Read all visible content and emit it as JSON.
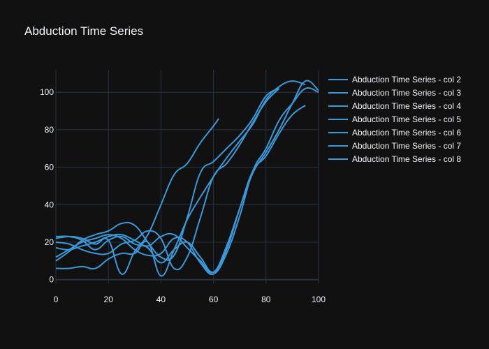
{
  "chart_data": {
    "type": "line",
    "title": "Abduction Time Series",
    "xlabel": "",
    "ylabel": "",
    "xlim": [
      0,
      100
    ],
    "ylim": [
      -2,
      112
    ],
    "x_ticks": [
      0,
      20,
      40,
      60,
      80,
      100
    ],
    "y_ticks": [
      0,
      20,
      40,
      60,
      80,
      100
    ],
    "grid": true,
    "legend_position": "right",
    "colors": {
      "background": "#111111",
      "grid": "#283442",
      "text": "#f2f5fa",
      "line": "#3a9ad9"
    },
    "series": [
      {
        "name": "Abduction Time Series - col 2",
        "x": [
          0,
          5,
          10,
          15,
          20,
          25,
          30,
          35,
          40,
          45,
          50,
          55,
          60,
          65,
          70,
          75,
          80,
          85
        ],
        "values": [
          10,
          15,
          21,
          24,
          26,
          30,
          29,
          20,
          12,
          13,
          33,
          57,
          63,
          70,
          77,
          86,
          98,
          102
        ]
      },
      {
        "name": "Abduction Time Series - col 3",
        "x": [
          0,
          5,
          10,
          15,
          20,
          25,
          30,
          35,
          40,
          45,
          50,
          55,
          60,
          65,
          70,
          75,
          80,
          85,
          90,
          95,
          100
        ],
        "values": [
          12,
          16,
          20,
          22,
          24,
          22,
          16,
          13,
          14,
          22,
          20,
          9,
          3,
          14,
          34,
          58,
          70,
          85,
          94,
          102,
          100
        ]
      },
      {
        "name": "Abduction Time Series - col 4",
        "x": [
          0,
          5,
          10,
          15,
          20,
          25,
          30,
          35,
          40,
          45,
          50,
          55,
          60,
          65,
          70,
          75,
          80,
          85,
          90,
          95
        ],
        "values": [
          23,
          23,
          21,
          16,
          21,
          23,
          19,
          17,
          9,
          16,
          20,
          12,
          4,
          16,
          38,
          58,
          66,
          78,
          88,
          93
        ]
      },
      {
        "name": "Abduction Time Series - col 5",
        "x": [
          0,
          5,
          10,
          15,
          20,
          25,
          30,
          35,
          40,
          45,
          50,
          55,
          60,
          65,
          70,
          75,
          80,
          85
        ],
        "values": [
          20,
          19,
          16,
          14,
          14,
          19,
          21,
          26,
          22,
          6,
          12,
          33,
          55,
          62,
          72,
          84,
          95,
          102
        ]
      },
      {
        "name": "Abduction Time Series - col 6",
        "x": [
          0,
          5,
          10,
          15,
          20,
          25,
          30,
          35,
          40,
          45,
          50,
          55,
          60,
          65,
          70,
          75,
          80,
          85,
          90,
          95,
          100
        ],
        "values": [
          17,
          16,
          18,
          20,
          23,
          24,
          21,
          18,
          23,
          24,
          17,
          10,
          4,
          18,
          38,
          57,
          68,
          80,
          94,
          106,
          101
        ]
      },
      {
        "name": "Abduction Time Series - col 7",
        "x": [
          0,
          5,
          10,
          15,
          20,
          25,
          30,
          35,
          40,
          45,
          50,
          55,
          60,
          62
        ],
        "values": [
          22,
          23,
          22,
          19,
          21,
          3,
          15,
          24,
          40,
          56,
          62,
          73,
          82,
          86
        ]
      },
      {
        "name": "Abduction Time Series - col 8",
        "x": [
          0,
          5,
          10,
          15,
          20,
          25,
          30,
          35,
          40,
          45,
          50,
          55,
          60,
          65,
          70,
          75,
          80,
          85,
          90,
          95
        ],
        "values": [
          6,
          6,
          7,
          6,
          11,
          14,
          14,
          20,
          2,
          16,
          32,
          44,
          55,
          65,
          74,
          83,
          96,
          103,
          106,
          104
        ]
      }
    ]
  }
}
